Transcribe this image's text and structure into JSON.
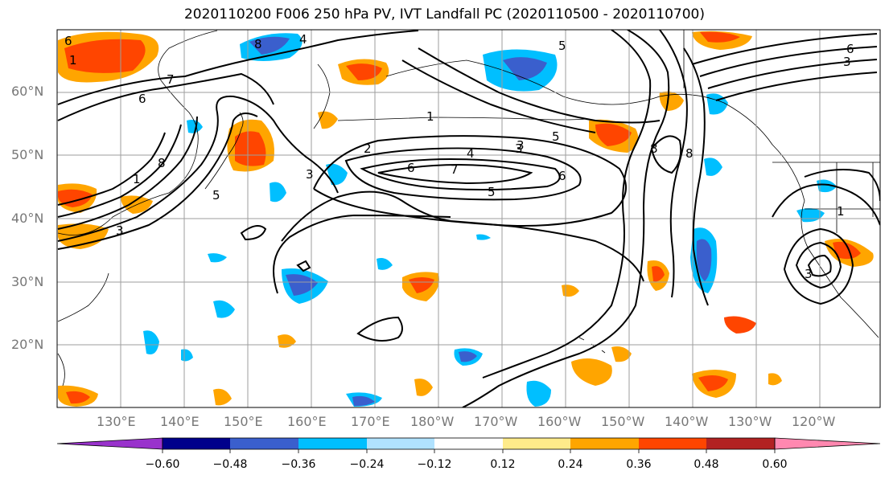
{
  "title": "2020110200 F006 250 hPa PV, IVT Landfall PC (2020110500 - 2020110700)",
  "lat_labels": [
    "60°N",
    "50°N",
    "40°N",
    "30°N",
    "20°N"
  ],
  "lon_labels": [
    "130°E",
    "140°E",
    "150°E",
    "160°E",
    "170°E",
    "180°W",
    "170°W",
    "160°W",
    "150°W",
    "140°W",
    "130°W",
    "120°W"
  ],
  "colorbar": {
    "ticks": [
      "−0.60",
      "−0.48",
      "−0.36",
      "−0.24",
      "−0.12",
      "0.12",
      "0.24",
      "0.36",
      "0.48",
      "0.60"
    ],
    "colors": [
      "#9932cc",
      "#00008b",
      "#3a5fcd",
      "#00bfff",
      "#b0e2ff",
      "#ffffff",
      "#ffeb8a",
      "#ffa500",
      "#ff4500",
      "#b22222",
      "#ff88b0"
    ]
  },
  "contour_labels": [
    "6",
    "1",
    "7",
    "6",
    "8",
    "4",
    "5",
    "1",
    "5",
    "8",
    "8",
    "3",
    "1",
    "3",
    "2",
    "4",
    "3",
    "6",
    "7",
    "6",
    "5",
    "5",
    "3",
    "8",
    "6",
    "3",
    "1",
    "3"
  ]
}
